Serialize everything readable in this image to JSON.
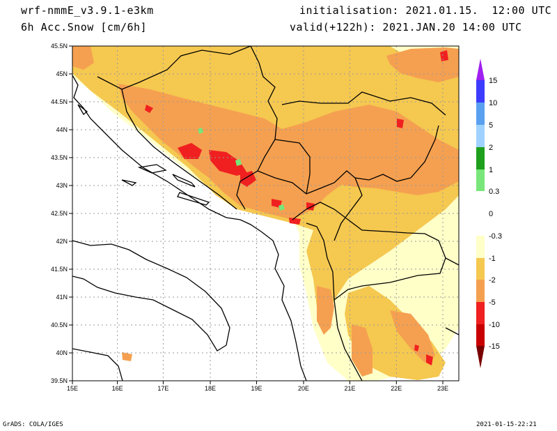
{
  "header": {
    "model": "wrf-nmmE_v3.9.1-e3km",
    "variable": "6h Acc.Snow [cm/6h]",
    "initialisation": "initialisation: 2021.01.15.  12:00 UTC",
    "valid": "valid(+122h): 2021.JAN.20 14:00 UTC"
  },
  "footer": {
    "left": "GrADS: COLA/IGES",
    "right": "2021-01-15-22:21"
  },
  "map": {
    "lon_labels": [
      "15E",
      "16E",
      "17E",
      "18E",
      "19E",
      "20E",
      "21E",
      "22E",
      "23E"
    ],
    "lat_labels": [
      "45.5N",
      "45N",
      "44.5N",
      "44N",
      "43.5N",
      "43N",
      "42.5N",
      "42N",
      "41.5N",
      "41N",
      "40.5N",
      "40N",
      "39.5N"
    ],
    "lon_range": [
      15,
      23.3
    ],
    "lat_range": [
      39.5,
      45.5
    ]
  },
  "legend": {
    "labels": [
      "15",
      "10",
      "5",
      "2",
      "1",
      "0.3",
      "0",
      "-0.3",
      "-1",
      "-2",
      "-5",
      "-10",
      "-15"
    ],
    "colors": [
      "#a020f0",
      "#3c3cff",
      "#5aa0f0",
      "#a0d2ff",
      "#1ea01e",
      "#78e678",
      "#ffffff",
      "#ffffc8",
      "#f5c850",
      "#f5a050",
      "#f02020",
      "#c80000",
      "#7a0000"
    ]
  },
  "snow_colors": {
    "light": "#ffffc8",
    "moderate": "#f5c850",
    "heavy": "#f5a050",
    "very_heavy": "#f02020",
    "green_light": "#78e678"
  }
}
